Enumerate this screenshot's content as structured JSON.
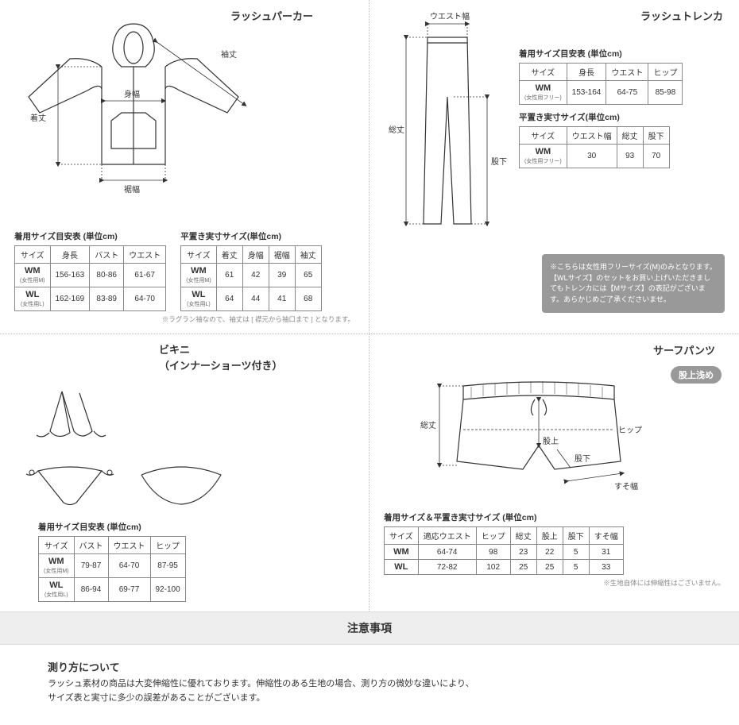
{
  "sections": {
    "parka": {
      "title": "ラッシュパーカー",
      "labels": {
        "sleeve": "袖丈",
        "bodyw": "身幅",
        "length": "着丈",
        "hemw": "裾幅"
      },
      "fit": {
        "title": "着用サイズ目安表 (単位cm)",
        "columns": [
          "サイズ",
          "身長",
          "バスト",
          "ウエスト"
        ],
        "rows": [
          {
            "sz": "WM",
            "szsub": "(女性用M)",
            "v": [
              "156-163",
              "80-86",
              "61-67"
            ]
          },
          {
            "sz": "WL",
            "szsub": "(女性用L)",
            "v": [
              "162-169",
              "83-89",
              "64-70"
            ]
          }
        ]
      },
      "flat": {
        "title": "平置き実寸サイズ(単位cm)",
        "columns": [
          "サイズ",
          "着丈",
          "身幅",
          "裾幅",
          "袖丈"
        ],
        "rows": [
          {
            "sz": "WM",
            "szsub": "(女性用M)",
            "v": [
              "61",
              "42",
              "39",
              "65"
            ]
          },
          {
            "sz": "WL",
            "szsub": "(女性用L)",
            "v": [
              "64",
              "44",
              "41",
              "68"
            ]
          }
        ]
      },
      "footnote": "※ラグラン袖なので、袖丈は [ 襟元から袖口まで ] となります。"
    },
    "trenka": {
      "title": "ラッシュトレンカ",
      "labels": {
        "waistw": "ウエスト幅",
        "length": "総丈",
        "inseam": "股下"
      },
      "fit": {
        "title": "着用サイズ目安表 (単位cm)",
        "columns": [
          "サイズ",
          "身長",
          "ウエスト",
          "ヒップ"
        ],
        "rows": [
          {
            "sz": "WM",
            "szsub": "(女性用フリー)",
            "v": [
              "153-164",
              "64-75",
              "85-98"
            ]
          }
        ]
      },
      "flat": {
        "title": "平置き実寸サイズ(単位cm)",
        "columns": [
          "サイズ",
          "ウエスト幅",
          "総丈",
          "股下"
        ],
        "rows": [
          {
            "sz": "WM",
            "szsub": "(女性用フリー)",
            "v": [
              "30",
              "93",
              "70"
            ]
          }
        ]
      },
      "notice": "※こちらは女性用フリーサイズ(M)のみとなります。【WLサイズ】のセットをお買い上げいただきましてもトレンカには【Mサイズ】の表記がございます。あらかじめご了承くださいませ。"
    },
    "bikini": {
      "title": "ビキニ\n（インナーショーツ付き）",
      "fit": {
        "title": "着用サイズ目安表 (単位cm)",
        "columns": [
          "サイズ",
          "バスト",
          "ウエスト",
          "ヒップ"
        ],
        "rows": [
          {
            "sz": "WM",
            "szsub": "(女性用M)",
            "v": [
              "79-87",
              "64-70",
              "87-95"
            ]
          },
          {
            "sz": "WL",
            "szsub": "(女性用L)",
            "v": [
              "86-94",
              "69-77",
              "92-100"
            ]
          }
        ]
      }
    },
    "surfpants": {
      "title": "サーフパンツ",
      "badge": "股上浅め",
      "labels": {
        "length": "総丈",
        "hip": "ヒップ",
        "rise": "股上",
        "inseam": "股下",
        "hemw": "すそ幅"
      },
      "combo": {
        "title": "着用サイズ＆平置き実寸サイズ (単位cm)",
        "columns": [
          "サイズ",
          "適応ウエスト",
          "ヒップ",
          "総丈",
          "股上",
          "股下",
          "すそ幅"
        ],
        "rows": [
          {
            "sz": "WM",
            "szsub": "",
            "v": [
              "64-74",
              "98",
              "23",
              "22",
              "5",
              "31"
            ]
          },
          {
            "sz": "WL",
            "szsub": "",
            "v": [
              "72-82",
              "102",
              "25",
              "25",
              "5",
              "33"
            ]
          }
        ]
      },
      "footnote": "※生地自体には伸縮性はございません。"
    }
  },
  "footer": {
    "bar": "注意事項",
    "heading": "測り方について",
    "body": "ラッシュ素材の商品は大変伸縮性に優れております。伸縮性のある生地の場合、測り方の微妙な違いにより、\nサイズ表と実寸に多少の誤差があることがございます。"
  },
  "style": {
    "border": "#888",
    "text": "#333",
    "muted": "#888",
    "badge_bg": "#999"
  }
}
